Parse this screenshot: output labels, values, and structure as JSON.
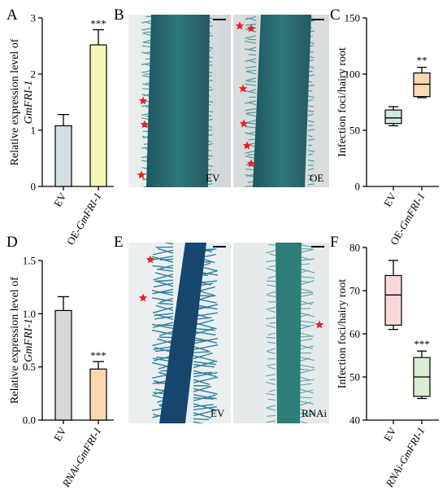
{
  "panels": {
    "A": "A",
    "B": "B",
    "C": "C",
    "D": "D",
    "E": "E",
    "F": "F"
  },
  "chart_data": [
    {
      "id": "A",
      "type": "bar",
      "ylabel_line1": "Relative expression level of",
      "ylabel_line2": "GmFRI-1",
      "categories": [
        "EV",
        "OE-GmFRI-1"
      ],
      "category_parts": [
        [
          "EV",
          ""
        ],
        [
          "OE-",
          "GmFRI-1"
        ]
      ],
      "values": [
        1.08,
        2.52
      ],
      "errors": [
        0.2,
        0.27
      ],
      "colors": [
        "#d3e0e2",
        "#f4f6b4"
      ],
      "ylim": [
        0,
        3
      ],
      "yticks": [
        "0",
        "1",
        "2",
        "3"
      ],
      "significance": [
        "",
        "***"
      ]
    },
    {
      "id": "C",
      "type": "box",
      "ylabel": "Infection foci/hairy root",
      "categories": [
        "EV",
        "OE-GmFRI-1"
      ],
      "category_parts": [
        [
          "EV",
          ""
        ],
        [
          "OE-",
          "GmFRI-1"
        ]
      ],
      "boxes": [
        {
          "min": 54,
          "q1": 56,
          "median": 61,
          "q3": 68,
          "max": 71
        },
        {
          "min": 79,
          "q1": 80,
          "median": 91,
          "q3": 101,
          "max": 106
        }
      ],
      "colors": [
        "#cfe8e1",
        "#fbd9b6"
      ],
      "ylim": [
        0,
        150
      ],
      "yticks": [
        "0",
        "50",
        "100",
        "150"
      ],
      "significance": [
        "",
        "**"
      ]
    },
    {
      "id": "D",
      "type": "bar",
      "ylabel_line1": "Relative expression level of",
      "ylabel_line2": "GmFRI-1",
      "categories": [
        "EV",
        "RNAi-GmFRI-1"
      ],
      "category_parts": [
        [
          "EV",
          ""
        ],
        [
          "",
          "RNAi-GmFRI-1"
        ]
      ],
      "values": [
        1.03,
        0.48
      ],
      "errors": [
        0.13,
        0.07
      ],
      "colors": [
        "#d8d8d8",
        "#f9d8b0"
      ],
      "ylim": [
        0,
        1.5
      ],
      "yticks": [
        "0.0",
        "0.5",
        "1.0",
        "1.5"
      ],
      "significance": [
        "",
        "***"
      ]
    },
    {
      "id": "F",
      "type": "box",
      "ylabel": "Infection foci/hairy root",
      "categories": [
        "EV",
        "RNAi-GmFRI-1"
      ],
      "category_parts": [
        [
          "EV",
          ""
        ],
        [
          "",
          "RNAi-GmFRI-1"
        ]
      ],
      "boxes": [
        {
          "min": 61,
          "q1": 62,
          "median": 69,
          "q3": 73.5,
          "max": 77
        },
        {
          "min": 45,
          "q1": 45.5,
          "median": 50,
          "q3": 54.5,
          "max": 56
        }
      ],
      "colors": [
        "#fbd7dc",
        "#dbedd3"
      ],
      "ylim": [
        40,
        80
      ],
      "yticks": [
        "40",
        "50",
        "60",
        "70",
        "80"
      ],
      "significance": [
        "",
        "***"
      ]
    }
  ],
  "photos": {
    "B_left": "EV",
    "B_right": "OE",
    "E_left": "EV",
    "E_right": "RNAi"
  },
  "marker_color": "#e8202a"
}
